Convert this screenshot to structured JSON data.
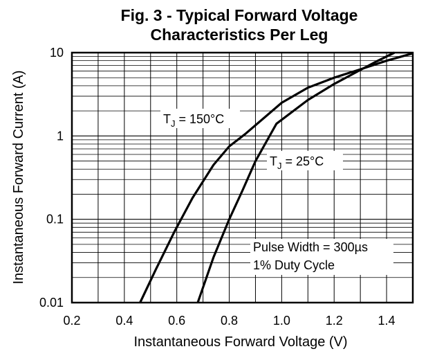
{
  "chart_data": {
    "type": "line",
    "title_lines": [
      "Fig. 3 - Typical Forward Voltage",
      "Characteristics Per Leg"
    ],
    "xlabel": "Instantaneous Forward Voltage (V)",
    "ylabel": "Instantaneous Forward Current (A)",
    "xlim": [
      0.2,
      1.5
    ],
    "ylim": [
      0.01,
      10
    ],
    "yscale": "log",
    "xticks": [
      0.2,
      0.4,
      0.6,
      0.8,
      1.0,
      1.2,
      1.4
    ],
    "xtick_labels": [
      "0.2",
      "0.4",
      "0.6",
      "0.8",
      "1.0",
      "1.2",
      "1.4"
    ],
    "yticks": [
      0.01,
      0.1,
      1,
      10
    ],
    "ytick_labels": [
      "0.01",
      "0.1",
      "1",
      "10"
    ],
    "grid": true,
    "series": [
      {
        "name": "TJ = 150°C",
        "label_main": "T",
        "label_sub": "J",
        "label_rest": " = 150°C",
        "x": [
          0.46,
          0.52,
          0.59,
          0.66,
          0.74,
          0.8,
          0.86,
          1.0,
          1.1,
          1.2,
          1.3,
          1.4,
          1.5
        ],
        "y": [
          0.01,
          0.025,
          0.07,
          0.18,
          0.45,
          0.75,
          1.05,
          2.5,
          3.8,
          5.0,
          6.3,
          8.0,
          9.8
        ]
      },
      {
        "name": "TJ = 25°C",
        "label_main": "T",
        "label_sub": "J",
        "label_rest": " = 25°C",
        "x": [
          0.68,
          0.74,
          0.8,
          0.85,
          0.9,
          0.98,
          1.1,
          1.2,
          1.3,
          1.36,
          1.43
        ],
        "y": [
          0.01,
          0.035,
          0.1,
          0.22,
          0.5,
          1.4,
          2.7,
          4.2,
          6.2,
          7.8,
          10
        ]
      }
    ],
    "annotations": [
      "Pulse Width = 300µs",
      "1% Duty Cycle"
    ]
  }
}
